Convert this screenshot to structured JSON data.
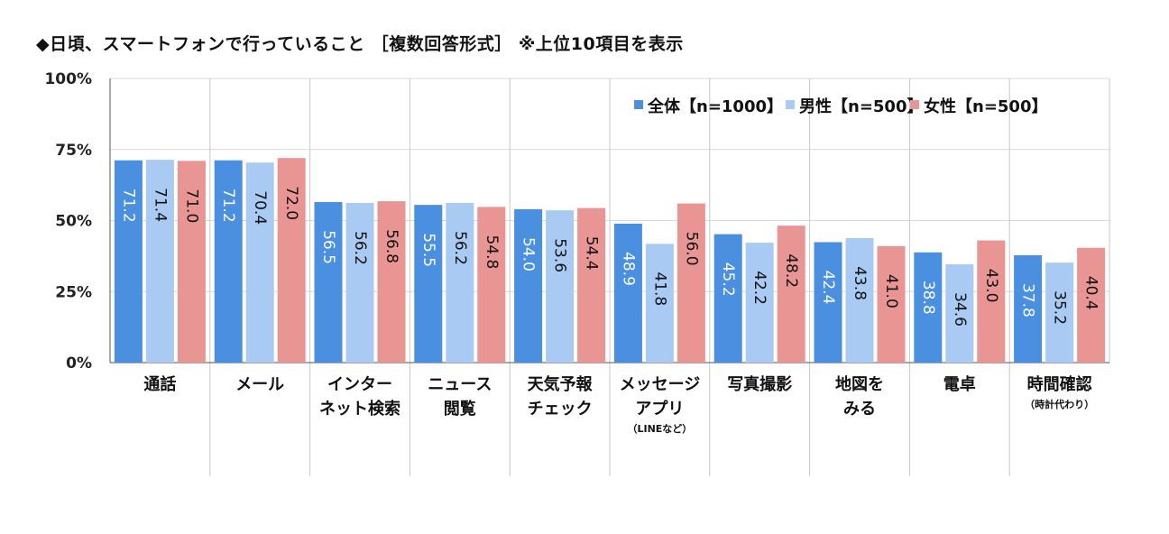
{
  "chart_data": {
    "type": "bar",
    "title": "◆日頃、スマートフォンで行っていること ［複数回答形式］ ※上位10項目を表示",
    "ylim": [
      0,
      100
    ],
    "yticks": [
      "0%",
      "25%",
      "50%",
      "75%",
      "100%"
    ],
    "y_tick_values": [
      0,
      25,
      50,
      75,
      100
    ],
    "grid": true,
    "legend_position": "top-right",
    "categories": [
      {
        "label": [
          "通話"
        ],
        "note": ""
      },
      {
        "label": [
          "メール"
        ],
        "note": ""
      },
      {
        "label": [
          "インター",
          "ネット検索"
        ],
        "note": ""
      },
      {
        "label": [
          "ニュース",
          "閲覧"
        ],
        "note": ""
      },
      {
        "label": [
          "天気予報",
          "チェック"
        ],
        "note": ""
      },
      {
        "label": [
          "メッセージ",
          "アプリ"
        ],
        "note": "（LINEなど）"
      },
      {
        "label": [
          "写真撮影"
        ],
        "note": ""
      },
      {
        "label": [
          "地図を",
          "みる"
        ],
        "note": ""
      },
      {
        "label": [
          "電卓"
        ],
        "note": ""
      },
      {
        "label": [
          "時間確認"
        ],
        "note": "（時計代わり）"
      }
    ],
    "series": [
      {
        "name": "全体【n=1000】",
        "color": "#4a8fe0",
        "label_color": "#ffffff",
        "values": [
          71.2,
          71.2,
          56.5,
          55.5,
          54.0,
          48.9,
          45.2,
          42.4,
          38.8,
          37.8
        ]
      },
      {
        "name": "男性【n=500】",
        "color": "#a9cbf3",
        "label_color": "#111111",
        "values": [
          71.4,
          70.4,
          56.2,
          56.2,
          53.6,
          41.8,
          42.2,
          43.8,
          34.6,
          35.2
        ]
      },
      {
        "name": "女性【n=500】",
        "color": "#e89593",
        "label_color": "#111111",
        "values": [
          71.0,
          72.0,
          56.8,
          54.8,
          54.4,
          56.0,
          48.2,
          41.0,
          43.0,
          40.4
        ]
      }
    ]
  }
}
